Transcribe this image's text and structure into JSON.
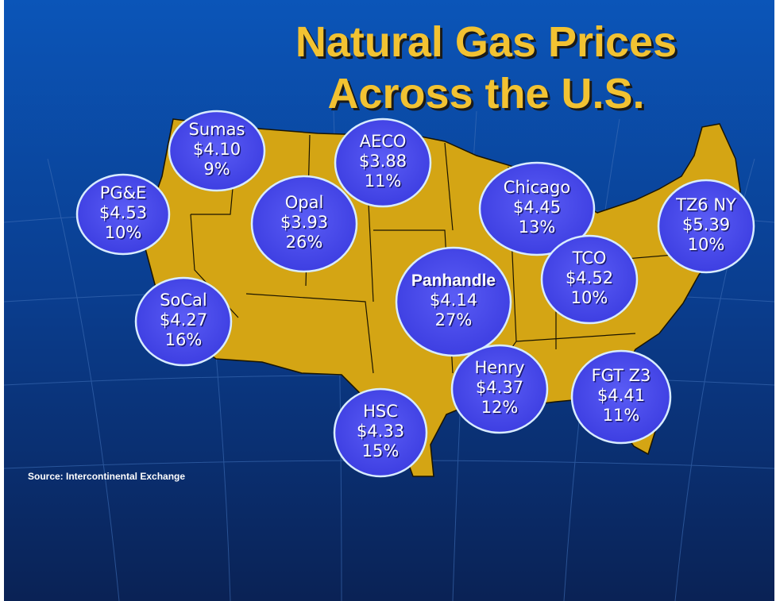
{
  "title": [
    "Natural Gas Prices",
    "Across the U.S."
  ],
  "hubs": [
    {
      "name": "Sumas",
      "price": "$4.10",
      "change": "9%"
    },
    {
      "name": "AECO",
      "price": "$3.88",
      "change": "11%"
    },
    {
      "name": "PG&E",
      "price": "$4.53",
      "change": "10%"
    },
    {
      "name": "Opal",
      "price": "$3.93",
      "change": "26%"
    },
    {
      "name": "Chicago",
      "price": "$4.45",
      "change": "13%"
    },
    {
      "name": "TZ6 NY",
      "price": "$5.39",
      "change": "10%"
    },
    {
      "name": "TCO",
      "price": "$4.52",
      "change": "10%"
    },
    {
      "name": "Panhandle",
      "price": "$4.14",
      "change": "27%"
    },
    {
      "name": "SoCal",
      "price": "$4.27",
      "change": "16%"
    },
    {
      "name": "Henry",
      "price": "$4.37",
      "change": "12%"
    },
    {
      "name": "FGT Z3",
      "price": "$4.41",
      "change": "11%"
    },
    {
      "name": "HSC",
      "price": "$4.33",
      "change": "15%"
    }
  ],
  "source": "Source:  Intercontinental Exchange"
}
